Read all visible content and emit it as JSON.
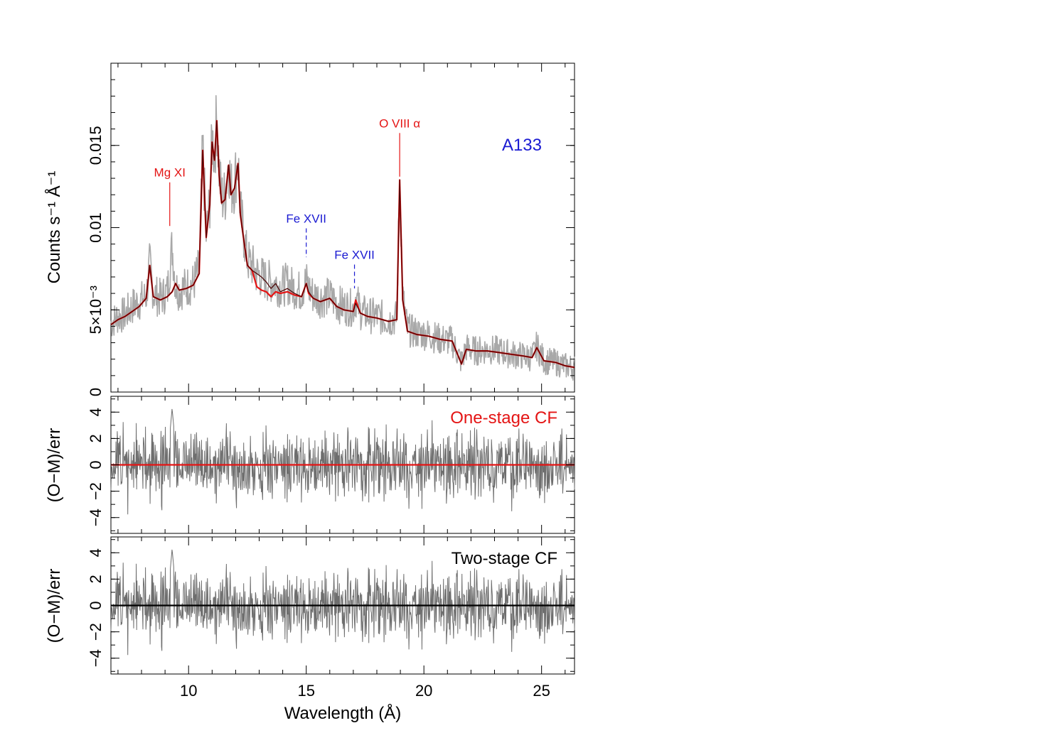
{
  "chart_data": [
    {
      "type": "line",
      "panel": "spectrum",
      "title": "A133",
      "xlabel": "",
      "ylabel": "Counts s⁻¹ Å⁻¹",
      "xlim": [
        6.7,
        26.4
      ],
      "ylim": [
        0,
        0.02
      ],
      "yticks": [
        {
          "value": 0,
          "label": "0"
        },
        {
          "value": 0.005,
          "label": "5×10⁻³"
        },
        {
          "value": 0.01,
          "label": "0.01"
        },
        {
          "value": 0.015,
          "label": "0.015"
        }
      ],
      "grid": false,
      "colors": {
        "data": "#a8a8a8",
        "one_stage": "#e41414",
        "two_stage": "#4a0000",
        "annot_red": "#e41414",
        "annot_blue": "#1a1ad2",
        "title": "#1a1ad2"
      },
      "series": [
        {
          "name": "",
          "style": "data",
          "x": [
            6.7,
            7.0,
            7.3,
            7.6,
            7.9,
            8.2,
            8.35,
            8.5,
            8.8,
            9.1,
            9.3,
            9.45,
            9.6,
            9.9,
            10.2,
            10.45,
            10.6,
            10.75,
            10.9,
            11.0,
            11.1,
            11.2,
            11.3,
            11.4,
            11.55,
            11.7,
            11.8,
            11.95,
            12.1,
            12.2,
            12.35,
            12.5,
            12.7,
            12.9,
            13.1,
            13.3,
            13.5,
            13.7,
            13.9,
            14.2,
            14.5,
            14.8,
            15.0,
            15.1,
            15.3,
            15.6,
            16.0,
            16.3,
            16.6,
            17.0,
            17.1,
            17.3,
            17.6,
            18.0,
            18.5,
            18.85,
            18.97,
            19.1,
            19.3,
            19.7,
            20.2,
            20.7,
            21.2,
            21.6,
            21.8,
            22.2,
            22.7,
            23.2,
            23.7,
            24.2,
            24.6,
            24.8,
            25.1,
            25.6,
            26.0,
            26.4
          ],
          "values": [
            0.0042,
            0.0046,
            0.0047,
            0.0052,
            0.0055,
            0.0058,
            0.0078,
            0.006,
            0.0057,
            0.0061,
            0.0089,
            0.0064,
            0.0062,
            0.0064,
            0.0066,
            0.0075,
            0.0149,
            0.0095,
            0.0115,
            0.0155,
            0.0144,
            0.0168,
            0.0135,
            0.0118,
            0.0119,
            0.0142,
            0.0123,
            0.0127,
            0.0142,
            0.011,
            0.0095,
            0.008,
            0.0077,
            0.0072,
            0.007,
            0.0068,
            0.0067,
            0.0066,
            0.0064,
            0.0066,
            0.0063,
            0.0061,
            0.0068,
            0.0063,
            0.0059,
            0.0057,
            0.0058,
            0.0054,
            0.0052,
            0.0051,
            0.0058,
            0.0049,
            0.0047,
            0.0046,
            0.0044,
            0.0045,
            0.0131,
            0.0058,
            0.0038,
            0.0036,
            0.0035,
            0.0032,
            0.0031,
            0.0018,
            0.0027,
            0.0025,
            0.0026,
            0.0025,
            0.0023,
            0.0022,
            0.0021,
            0.0028,
            0.0019,
            0.0018,
            0.0016,
            0.0015
          ]
        },
        {
          "name": "One-stage CF",
          "style": "one_stage",
          "x": [
            6.7,
            7.0,
            7.3,
            7.6,
            7.9,
            8.2,
            8.35,
            8.5,
            8.8,
            9.1,
            9.3,
            9.45,
            9.6,
            9.9,
            10.2,
            10.45,
            10.6,
            10.75,
            10.9,
            11.0,
            11.1,
            11.2,
            11.3,
            11.4,
            11.55,
            11.7,
            11.8,
            11.95,
            12.1,
            12.2,
            12.35,
            12.5,
            12.7,
            12.9,
            13.1,
            13.3,
            13.5,
            13.7,
            13.9,
            14.2,
            14.5,
            14.8,
            15.0,
            15.1,
            15.3,
            15.6,
            16.0,
            16.3,
            16.6,
            17.0,
            17.1,
            17.3,
            17.6,
            18.0,
            18.5,
            18.85,
            18.97,
            19.1,
            19.3,
            19.7,
            20.2,
            20.7,
            21.2,
            21.6,
            21.8,
            22.2,
            22.7,
            23.2,
            23.7,
            24.2,
            24.6,
            24.8,
            25.1,
            25.6,
            26.0,
            26.4
          ],
          "values": [
            0.0041,
            0.0044,
            0.0046,
            0.0049,
            0.0052,
            0.0057,
            0.0077,
            0.0058,
            0.0056,
            0.0058,
            0.0061,
            0.0066,
            0.0062,
            0.0063,
            0.0065,
            0.0072,
            0.0147,
            0.0094,
            0.0114,
            0.0152,
            0.0141,
            0.0165,
            0.0132,
            0.0115,
            0.0117,
            0.0138,
            0.012,
            0.0124,
            0.0139,
            0.0108,
            0.0092,
            0.0077,
            0.0074,
            0.0064,
            0.0062,
            0.0061,
            0.0058,
            0.0061,
            0.006,
            0.0061,
            0.0059,
            0.0058,
            0.0066,
            0.006,
            0.0057,
            0.0055,
            0.0057,
            0.0052,
            0.005,
            0.0049,
            0.0056,
            0.0048,
            0.0046,
            0.0045,
            0.0043,
            0.0044,
            0.0129,
            0.0056,
            0.0037,
            0.0035,
            0.0034,
            0.0032,
            0.0031,
            0.0017,
            0.0026,
            0.0025,
            0.0025,
            0.0024,
            0.0023,
            0.0022,
            0.0021,
            0.0027,
            0.0019,
            0.0018,
            0.0016,
            0.0015
          ]
        },
        {
          "name": "Two-stage CF",
          "style": "two_stage",
          "x": [
            6.7,
            7.0,
            7.3,
            7.6,
            7.9,
            8.2,
            8.35,
            8.5,
            8.8,
            9.1,
            9.3,
            9.45,
            9.6,
            9.9,
            10.2,
            10.45,
            10.6,
            10.75,
            10.9,
            11.0,
            11.1,
            11.2,
            11.3,
            11.4,
            11.55,
            11.7,
            11.8,
            11.95,
            12.1,
            12.2,
            12.35,
            12.5,
            12.7,
            12.9,
            13.1,
            13.3,
            13.5,
            13.7,
            13.9,
            14.2,
            14.5,
            14.8,
            15.0,
            15.1,
            15.3,
            15.6,
            16.0,
            16.3,
            16.6,
            17.0,
            17.1,
            17.3,
            17.6,
            18.0,
            18.5,
            18.85,
            18.97,
            19.1,
            19.3,
            19.7,
            20.2,
            20.7,
            21.2,
            21.6,
            21.8,
            22.2,
            22.7,
            23.2,
            23.7,
            24.2,
            24.6,
            24.8,
            25.1,
            25.6,
            26.0,
            26.4
          ],
          "values": [
            0.0041,
            0.0044,
            0.0046,
            0.0049,
            0.0052,
            0.0057,
            0.0077,
            0.0058,
            0.0056,
            0.0058,
            0.0061,
            0.0066,
            0.0062,
            0.0063,
            0.0065,
            0.0072,
            0.0147,
            0.0094,
            0.0114,
            0.0152,
            0.0141,
            0.0165,
            0.0132,
            0.0115,
            0.0117,
            0.0138,
            0.012,
            0.0124,
            0.0139,
            0.0108,
            0.0092,
            0.0077,
            0.0074,
            0.0072,
            0.007,
            0.0067,
            0.0063,
            0.0066,
            0.0061,
            0.0063,
            0.006,
            0.0058,
            0.0066,
            0.0061,
            0.0057,
            0.0055,
            0.0057,
            0.0052,
            0.005,
            0.0049,
            0.0054,
            0.0048,
            0.0046,
            0.0045,
            0.0043,
            0.0044,
            0.0129,
            0.0056,
            0.0037,
            0.0035,
            0.0034,
            0.0032,
            0.0031,
            0.0017,
            0.0026,
            0.0025,
            0.0025,
            0.0024,
            0.0023,
            0.0022,
            0.0021,
            0.0027,
            0.0019,
            0.0018,
            0.0016,
            0.0015
          ]
        }
      ],
      "annotations": [
        {
          "text": "Mg XI",
          "x": 9.2,
          "y_top": 0.0131,
          "y_bottom": 0.0101,
          "color": "red",
          "dashed": false
        },
        {
          "text": "Fe XVII",
          "x": 15.0,
          "y_top": 0.0103,
          "y_bottom": 0.0082,
          "color": "blue",
          "dashed": true
        },
        {
          "text": "Fe XVII",
          "x": 17.05,
          "y_top": 0.0081,
          "y_bottom": 0.0063,
          "color": "blue",
          "dashed": true
        },
        {
          "text": "O VIII α",
          "x": 18.97,
          "y_top": 0.0161,
          "y_bottom": 0.0131,
          "color": "red",
          "dashed": false
        }
      ]
    },
    {
      "type": "line",
      "panel": "residual_one",
      "title": "One-stage CF",
      "xlabel": "",
      "ylabel": "(O−M)/err",
      "xlim": [
        6.7,
        26.4
      ],
      "ylim": [
        -5.2,
        5.2
      ],
      "yticks": [
        {
          "value": -4,
          "label": "−4"
        },
        {
          "value": -2,
          "label": "−2"
        },
        {
          "value": 0,
          "label": "0"
        },
        {
          "value": 2,
          "label": "2"
        },
        {
          "value": 4,
          "label": "4"
        }
      ],
      "grid": false,
      "zero_line_color": "#e41414",
      "series": [
        {
          "name": "",
          "style": "residual",
          "seed": 11
        }
      ]
    },
    {
      "type": "line",
      "panel": "residual_two",
      "title": "Two-stage CF",
      "xlabel": "Wavelength (Å)",
      "ylabel": "(O−M)/err",
      "xlim": [
        6.7,
        26.4
      ],
      "ylim": [
        -5.2,
        5.2
      ],
      "yticks": [
        {
          "value": -4,
          "label": "−4"
        },
        {
          "value": -2,
          "label": "−2"
        },
        {
          "value": 0,
          "label": "0"
        },
        {
          "value": 2,
          "label": "2"
        },
        {
          "value": 4,
          "label": "4"
        }
      ],
      "xticks": [
        {
          "value": 10,
          "label": "10"
        },
        {
          "value": 15,
          "label": "15"
        },
        {
          "value": 20,
          "label": "20"
        },
        {
          "value": 25,
          "label": "25"
        }
      ],
      "grid": false,
      "zero_line_color": "#000000",
      "series": [
        {
          "name": "",
          "style": "residual",
          "seed": 11
        }
      ]
    }
  ]
}
